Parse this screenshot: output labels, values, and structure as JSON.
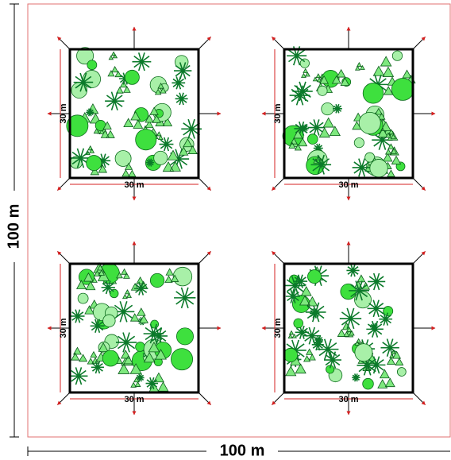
{
  "outer": {
    "width_label": "100 m",
    "height_label": "100 m"
  },
  "plots": [
    {
      "width_label": "30 m",
      "height_label": "30 m"
    },
    {
      "width_label": "30 m",
      "height_label": "30 m"
    },
    {
      "width_label": "30 m",
      "height_label": "30 m"
    },
    {
      "width_label": "30 m",
      "height_label": "30 m"
    }
  ]
}
